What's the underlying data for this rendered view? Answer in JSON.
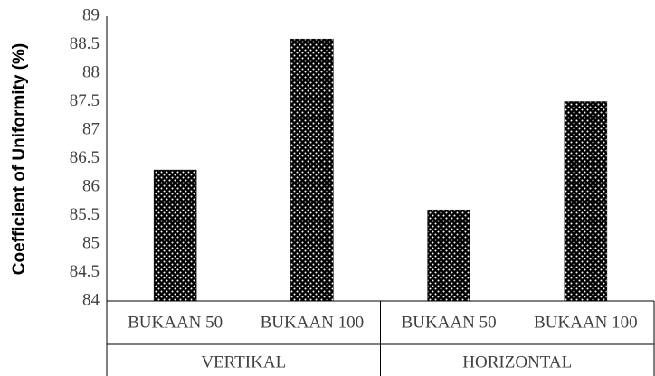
{
  "chart_data": {
    "type": "bar",
    "y_label": "Coefficient of Uniformity (%)",
    "categories": [
      "BUKAAN 50",
      "BUKAAN 100",
      "BUKAAN 50",
      "BUKAAN 100"
    ],
    "groups": [
      "VERTIKAL",
      "HORIZONTAL"
    ],
    "values": [
      86.3,
      88.6,
      85.6,
      87.5
    ],
    "color": "#000000",
    "ylim": [
      84,
      89
    ],
    "yticks": [
      84,
      84.5,
      85,
      85.5,
      86,
      86.5,
      87,
      87.5,
      88,
      88.5,
      89
    ],
    "grid": false
  }
}
